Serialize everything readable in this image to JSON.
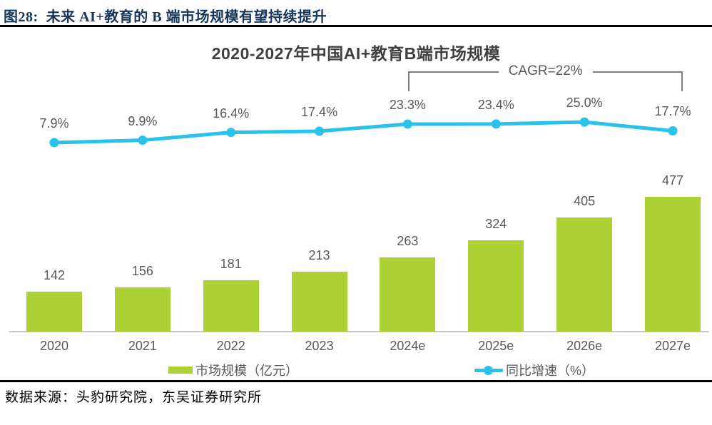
{
  "header": {
    "caption": "图28:  未来 AI+教育的 B 端市场规模有望持续提升"
  },
  "footer": {
    "source": "数据来源：头豹研究院，东吴证券研究所"
  },
  "chart_data": {
    "type": "combo-bar-line",
    "title": "2020-2027年中国AI+教育B端市场规模",
    "categories": [
      "2020",
      "2021",
      "2022",
      "2023",
      "2024e",
      "2025e",
      "2026e",
      "2027e"
    ],
    "series": [
      {
        "name": "市场规模（亿元）",
        "type": "bar",
        "values": [
          142,
          156,
          181,
          213,
          263,
          324,
          405,
          477
        ],
        "color": "#ABD134"
      },
      {
        "name": "同比增速（%）",
        "type": "line",
        "values": [
          7.9,
          9.9,
          16.4,
          17.4,
          23.3,
          23.4,
          25.0,
          17.7
        ],
        "labels": [
          "7.9%",
          "9.9%",
          "16.4%",
          "17.4%",
          "23.3%",
          "23.4%",
          "25.0%",
          "17.7%"
        ],
        "color": "#29C2EA"
      }
    ],
    "annotation": {
      "text": "CAGR=22%",
      "from_index": 4,
      "to_index": 7
    },
    "legend_position": "bottom",
    "grid": false,
    "colors": {
      "bar": "#ABD134",
      "line": "#29C2EA",
      "label_text": "#595959",
      "title_text": "#404040",
      "bracket": "#7F7F7F",
      "axis_line": "#C7C5C5",
      "caption_text": "#17365D"
    }
  }
}
